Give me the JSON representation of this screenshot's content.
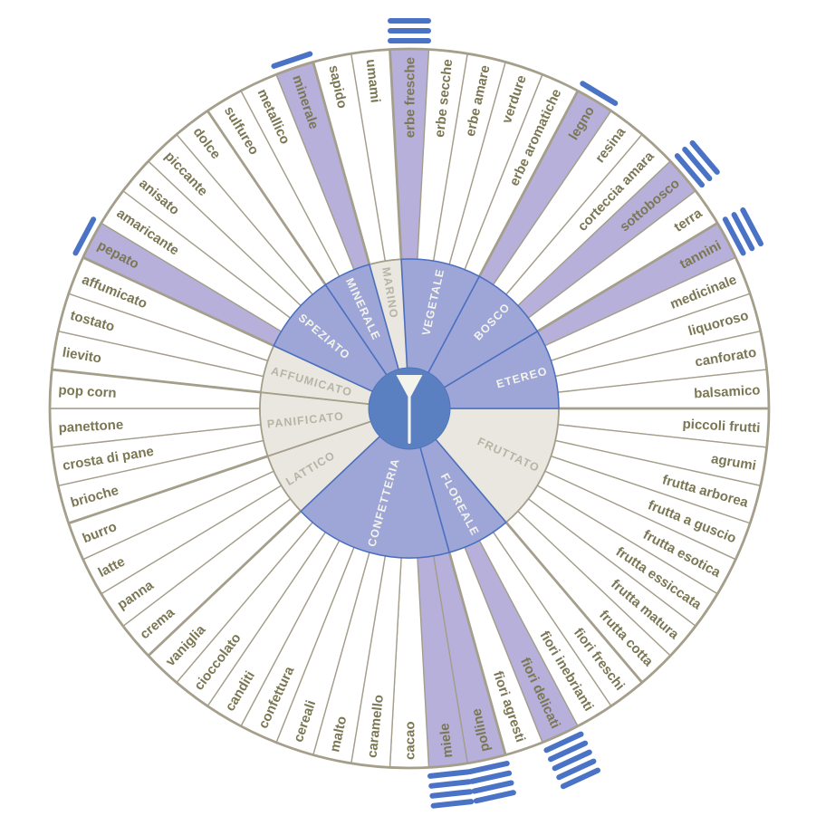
{
  "chart_data": {
    "type": "sunburst",
    "center_icon": "wine-glass-icon",
    "palette": {
      "highlight_segment": "#b6b0db",
      "active_category": "#9da6d6",
      "active_category_border": "#4a6fc0",
      "inactive_category": "#e9e7e0",
      "inactive_category_text": "#b7b3a5",
      "active_category_text": "#f4f3ec",
      "segment_border": "#a49e8b",
      "descriptor_text": "#7b7754",
      "center_circle": "#5b80c1",
      "glass_icon": "#f5f4ec",
      "tick_color": "#4a73c6",
      "background": "#ffffff"
    },
    "categories": [
      {
        "name": "VEGETALE",
        "active": true,
        "descriptors": [
          {
            "label": "erbe fresche",
            "highlight": true,
            "ticks": 3
          },
          {
            "label": "erbe secche",
            "highlight": false,
            "ticks": 0
          },
          {
            "label": "erbe amare",
            "highlight": false,
            "ticks": 0
          },
          {
            "label": "verdure",
            "highlight": false,
            "ticks": 0
          },
          {
            "label": "erbe aromatiche",
            "highlight": false,
            "ticks": 0
          }
        ]
      },
      {
        "name": "BOSCO",
        "active": true,
        "descriptors": [
          {
            "label": "legno",
            "highlight": true,
            "ticks": 1
          },
          {
            "label": "resina",
            "highlight": false,
            "ticks": 0
          },
          {
            "label": "corteccia amara",
            "highlight": false,
            "ticks": 0
          },
          {
            "label": "sottobosco",
            "highlight": true,
            "ticks": 3
          },
          {
            "label": "terra",
            "highlight": false,
            "ticks": 0
          }
        ]
      },
      {
        "name": "ETEREO",
        "active": true,
        "descriptors": [
          {
            "label": "tannini",
            "highlight": true,
            "ticks": 3
          },
          {
            "label": "medicinale",
            "highlight": false,
            "ticks": 0
          },
          {
            "label": "liquoroso",
            "highlight": false,
            "ticks": 0
          },
          {
            "label": "canforato",
            "highlight": false,
            "ticks": 0
          },
          {
            "label": "balsamico",
            "highlight": false,
            "ticks": 0
          }
        ]
      },
      {
        "name": "FRUTTATO",
        "active": false,
        "descriptors": [
          {
            "label": "piccoli frutti",
            "highlight": false,
            "ticks": 0
          },
          {
            "label": "agrumi",
            "highlight": false,
            "ticks": 0
          },
          {
            "label": "frutta arborea",
            "highlight": false,
            "ticks": 0
          },
          {
            "label": "frutta a guscio",
            "highlight": false,
            "ticks": 0
          },
          {
            "label": "frutta esotica",
            "highlight": false,
            "ticks": 0
          },
          {
            "label": "frutta essiccata",
            "highlight": false,
            "ticks": 0
          },
          {
            "label": "frutta matura",
            "highlight": false,
            "ticks": 0
          },
          {
            "label": "frutta cotta",
            "highlight": false,
            "ticks": 0
          }
        ]
      },
      {
        "name": "FLOREALE",
        "active": true,
        "descriptors": [
          {
            "label": "fiori freschi",
            "highlight": false,
            "ticks": 0
          },
          {
            "label": "fiori inebrianti",
            "highlight": false,
            "ticks": 0
          },
          {
            "label": "fiori delicati",
            "highlight": true,
            "ticks": 5
          },
          {
            "label": "fiori agresti",
            "highlight": false,
            "ticks": 0
          }
        ]
      },
      {
        "name": "CONFETTERIA",
        "active": true,
        "descriptors": [
          {
            "label": "polline",
            "highlight": true,
            "ticks": 4
          },
          {
            "label": "miele",
            "highlight": true,
            "ticks": 4
          },
          {
            "label": "cacao",
            "highlight": false,
            "ticks": 0
          },
          {
            "label": "caramello",
            "highlight": false,
            "ticks": 0
          },
          {
            "label": "malto",
            "highlight": false,
            "ticks": 0
          },
          {
            "label": "cereali",
            "highlight": false,
            "ticks": 0
          },
          {
            "label": "confettura",
            "highlight": false,
            "ticks": 0
          },
          {
            "label": "canditi",
            "highlight": false,
            "ticks": 0
          },
          {
            "label": "cioccolato",
            "highlight": false,
            "ticks": 0
          },
          {
            "label": "vaniglia",
            "highlight": false,
            "ticks": 0
          }
        ]
      },
      {
        "name": "LATTICO",
        "active": false,
        "descriptors": [
          {
            "label": "crema",
            "highlight": false,
            "ticks": 0
          },
          {
            "label": "panna",
            "highlight": false,
            "ticks": 0
          },
          {
            "label": "latte",
            "highlight": false,
            "ticks": 0
          },
          {
            "label": "burro",
            "highlight": false,
            "ticks": 0
          }
        ]
      },
      {
        "name": "PANIFICATO",
        "active": false,
        "descriptors": [
          {
            "label": "brioche",
            "highlight": false,
            "ticks": 0
          },
          {
            "label": "crosta di pane",
            "highlight": false,
            "ticks": 0
          },
          {
            "label": "panettone",
            "highlight": false,
            "ticks": 0
          },
          {
            "label": "pop corn",
            "highlight": false,
            "ticks": 0
          }
        ]
      },
      {
        "name": "AFFUMICATO",
        "active": false,
        "descriptors": [
          {
            "label": "lievito",
            "highlight": false,
            "ticks": 0
          },
          {
            "label": "tostato",
            "highlight": false,
            "ticks": 0
          },
          {
            "label": "affumicato",
            "highlight": false,
            "ticks": 0
          }
        ]
      },
      {
        "name": "SPEZIATO",
        "active": true,
        "descriptors": [
          {
            "label": "pepato",
            "highlight": true,
            "ticks": 1
          },
          {
            "label": "amaricante",
            "highlight": false,
            "ticks": 0
          },
          {
            "label": "anisato",
            "highlight": false,
            "ticks": 0
          },
          {
            "label": "piccante",
            "highlight": false,
            "ticks": 0
          },
          {
            "label": "dolce",
            "highlight": false,
            "ticks": 0
          }
        ]
      },
      {
        "name": "MINERALE",
        "active": true,
        "descriptors": [
          {
            "label": "sulfureo",
            "highlight": false,
            "ticks": 0
          },
          {
            "label": "metallico",
            "highlight": false,
            "ticks": 0
          },
          {
            "label": "minerale",
            "highlight": true,
            "ticks": 1
          }
        ]
      },
      {
        "name": "MARINO",
        "active": false,
        "descriptors": [
          {
            "label": "sapido",
            "highlight": false,
            "ticks": 0
          },
          {
            "label": "umami",
            "highlight": false,
            "ticks": 0
          }
        ]
      }
    ]
  }
}
